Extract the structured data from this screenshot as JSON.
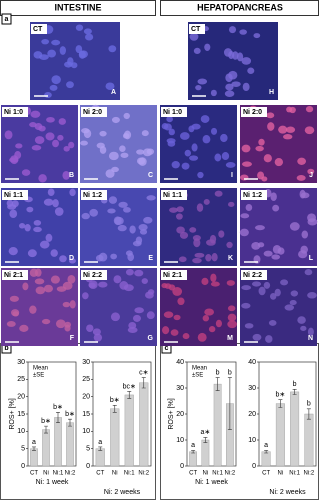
{
  "header": {
    "left": "INTESTINE",
    "right": "HEPATOPANCREAS"
  },
  "section_labels": [
    "a",
    "b",
    "c"
  ],
  "panels": [
    {
      "label": "CT",
      "letter": "A"
    },
    {
      "label": "CT",
      "letter": "H"
    },
    {
      "label": "Ni 1:0",
      "letter": "B"
    },
    {
      "label": "Ni 2:0",
      "letter": "C"
    },
    {
      "label": "Ni 1:0",
      "letter": "I"
    },
    {
      "label": "Ni 2:0",
      "letter": "J"
    },
    {
      "label": "Ni 1:1",
      "letter": "D"
    },
    {
      "label": "Ni 1:2",
      "letter": "E"
    },
    {
      "label": "Ni 1:1",
      "letter": "K"
    },
    {
      "label": "Ni 1:2",
      "letter": "L"
    },
    {
      "label": "Ni 2:1",
      "letter": "F"
    },
    {
      "label": "Ni 2:2",
      "letter": "G"
    },
    {
      "label": "Ni 2:1",
      "letter": "M"
    },
    {
      "label": "Ni 2:2",
      "letter": "N"
    }
  ],
  "chart_data": [
    {
      "type": "bar",
      "ylabel": "ROS+ [%]",
      "legend": [
        "Mean",
        "±SE"
      ],
      "xlabel": "Ni: 1 week",
      "categories": [
        "CT",
        "Ni",
        "Ni:1",
        "Ni:2"
      ],
      "values": [
        5,
        10.5,
        14,
        12.5
      ],
      "errors": [
        0.5,
        1,
        1.5,
        1
      ],
      "annotations": [
        "a",
        "b∗",
        "b∗",
        "b∗"
      ],
      "color": "#d0d0d0",
      "ylim": [
        0,
        30
      ],
      "yticks": [
        0,
        5,
        10,
        15,
        20,
        25,
        30
      ]
    },
    {
      "type": "bar",
      "xlabel": "Ni: 2 weeks",
      "categories": [
        "CT",
        "Ni",
        "Ni:1",
        "Ni:2"
      ],
      "values": [
        5,
        16.5,
        20.5,
        24
      ],
      "errors": [
        0.5,
        1,
        1,
        1.5
      ],
      "annotations": [
        "a",
        "b∗",
        "bc∗",
        "c∗"
      ],
      "color": "#d0d0d0",
      "ylim": [
        0,
        30
      ],
      "yticks": [
        0,
        5,
        10,
        15,
        20,
        25,
        30
      ]
    },
    {
      "type": "bar",
      "ylabel": "ROS+ [%]",
      "legend": [
        "Mean",
        "±SE"
      ],
      "xlabel": "Ni: 1 week",
      "categories": [
        "CT",
        "Ni",
        "Ni:1",
        "Ni:2"
      ],
      "values": [
        5.5,
        10,
        31.5,
        24
      ],
      "errors": [
        0.5,
        1,
        2.5,
        10
      ],
      "annotations": [
        "a",
        "a∗",
        "b",
        "b"
      ],
      "color": "#d0d0d0",
      "ylim": [
        0,
        40
      ],
      "yticks": [
        0,
        10,
        20,
        30,
        40
      ]
    },
    {
      "type": "bar",
      "xlabel": "Ni: 2 weeks",
      "categories": [
        "CT",
        "Ni",
        "Ni:1",
        "Ni:2"
      ],
      "values": [
        5.5,
        24,
        28.5,
        20
      ],
      "errors": [
        0.5,
        1.5,
        1,
        2
      ],
      "annotations": [
        "a",
        "b∗",
        "b",
        "b"
      ],
      "color": "#d0d0d0",
      "ylim": [
        0,
        40
      ],
      "yticks": [
        0,
        10,
        20,
        30,
        40
      ]
    }
  ]
}
